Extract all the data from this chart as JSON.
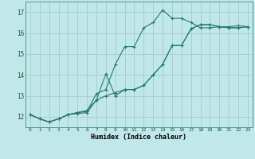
{
  "title": "",
  "xlabel": "Humidex (Indice chaleur)",
  "bg_color": "#c0e8e8",
  "grid_color": "#a8d0d0",
  "line_color": "#2a7a6a",
  "xlim": [
    -0.5,
    23.5
  ],
  "ylim": [
    11.5,
    17.5
  ],
  "xticks": [
    0,
    1,
    2,
    3,
    4,
    5,
    6,
    7,
    8,
    9,
    10,
    11,
    12,
    13,
    14,
    15,
    16,
    17,
    18,
    19,
    20,
    21,
    22,
    23
  ],
  "yticks": [
    12,
    13,
    14,
    15,
    16,
    17
  ],
  "line1_x": [
    0,
    1,
    2,
    3,
    4,
    5,
    6,
    7,
    8,
    9,
    10,
    11,
    12,
    13,
    14,
    15,
    16,
    17,
    18,
    19,
    20,
    21,
    22,
    23
  ],
  "line1_y": [
    12.1,
    11.9,
    11.75,
    11.9,
    12.1,
    12.15,
    12.2,
    12.8,
    13.0,
    13.15,
    13.3,
    13.3,
    13.5,
    14.0,
    14.5,
    15.4,
    15.4,
    16.2,
    16.4,
    16.4,
    16.3,
    16.25,
    16.25,
    16.3
  ],
  "line2_x": [
    0,
    1,
    2,
    3,
    4,
    5,
    6,
    7,
    8,
    9,
    10,
    11,
    12,
    13,
    14,
    15,
    16,
    17,
    18,
    19,
    20,
    21,
    22,
    23
  ],
  "line2_y": [
    12.1,
    11.9,
    11.75,
    11.9,
    12.1,
    12.2,
    12.25,
    13.1,
    13.3,
    14.5,
    15.35,
    15.35,
    16.25,
    16.5,
    17.1,
    16.7,
    16.7,
    16.5,
    16.25,
    16.25,
    16.3,
    16.3,
    16.35,
    16.3
  ],
  "line3_x": [
    0,
    1,
    2,
    3,
    4,
    5,
    6,
    7,
    8,
    9,
    10,
    11,
    12,
    13,
    14,
    15,
    16,
    17,
    18,
    19,
    20,
    21,
    22,
    23
  ],
  "line3_y": [
    12.1,
    11.9,
    11.75,
    11.9,
    12.1,
    12.2,
    12.3,
    12.8,
    14.05,
    13.0,
    13.3,
    13.3,
    13.5,
    14.0,
    14.5,
    15.4,
    15.4,
    16.2,
    16.4,
    16.4,
    16.3,
    16.25,
    16.25,
    16.3
  ]
}
